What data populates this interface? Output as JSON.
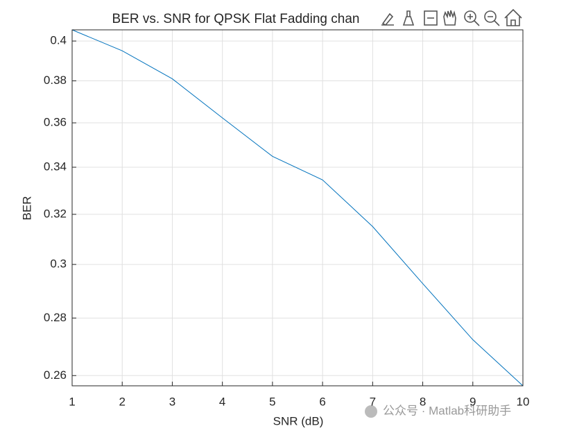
{
  "chart_data": {
    "type": "line",
    "title": "BER vs. SNR for QPSK Flat Fadding chan",
    "xlabel": "SNR (dB)",
    "ylabel": "BER",
    "x": [
      1,
      2,
      3,
      4,
      5,
      6,
      7,
      8,
      9,
      10
    ],
    "series": [
      {
        "name": "BER",
        "color": "#0072bd",
        "values": [
          0.4058,
          0.395,
          0.381,
          0.3623,
          0.3448,
          0.3345,
          0.315,
          0.2927,
          0.2723,
          0.2566
        ]
      }
    ],
    "xlim": [
      1,
      10
    ],
    "xticks": [
      1,
      2,
      3,
      4,
      5,
      6,
      7,
      8,
      9,
      10
    ],
    "ylim": [
      0.2566,
      0.4058
    ],
    "yticks": [
      0.26,
      0.28,
      0.3,
      0.32,
      0.34,
      0.36,
      0.38,
      0.4
    ],
    "ylog": true,
    "grid": true
  },
  "watermark": "公众号 · Matlab科研助手"
}
